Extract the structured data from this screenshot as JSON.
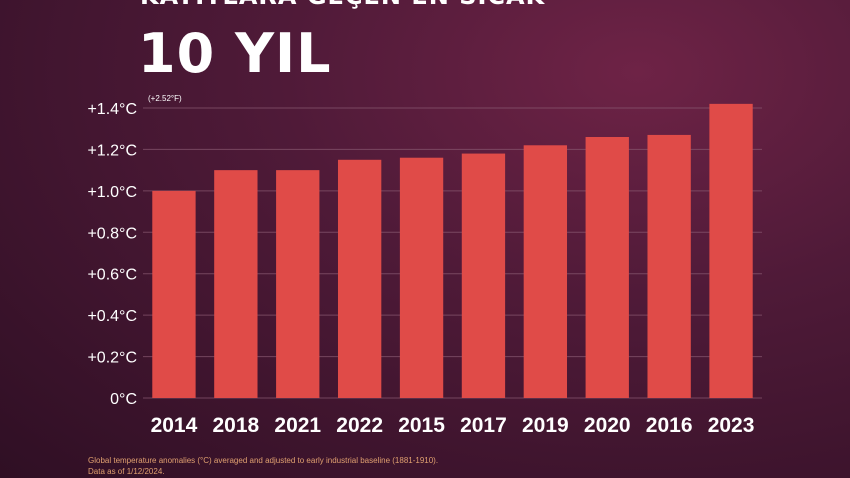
{
  "header": {
    "subtitle": "KAYITLARA GEÇEN EN SICAK",
    "title": "10 YIL"
  },
  "footnote": {
    "line1": "Global temperature anomalies (°C) averaged and adjusted to early industrial baseline (1881-1910).",
    "line2": "Data as of 1/12/2024."
  },
  "colors": {
    "bar": "#e04b48",
    "grid": "#8a5a72",
    "background": "#4f1a38"
  },
  "chart_data": {
    "type": "bar",
    "categories": [
      "2014",
      "2018",
      "2021",
      "2022",
      "2015",
      "2017",
      "2019",
      "2020",
      "2016",
      "2023"
    ],
    "values": [
      1.0,
      1.1,
      1.1,
      1.15,
      1.16,
      1.18,
      1.22,
      1.26,
      1.27,
      1.42
    ],
    "ylim": [
      0,
      1.4
    ],
    "yticks": [
      0,
      0.2,
      0.4,
      0.6,
      0.8,
      1.0,
      1.2,
      1.4
    ],
    "ytick_labels": [
      "0°C",
      "+0.2°C",
      "+0.4°C",
      "+0.6°C",
      "+0.8°C",
      "+1.0°C",
      "+1.2°C",
      "+1.4°C"
    ],
    "annotation": "(+2.52°F)",
    "grid": true,
    "xlabel": "",
    "ylabel": ""
  }
}
